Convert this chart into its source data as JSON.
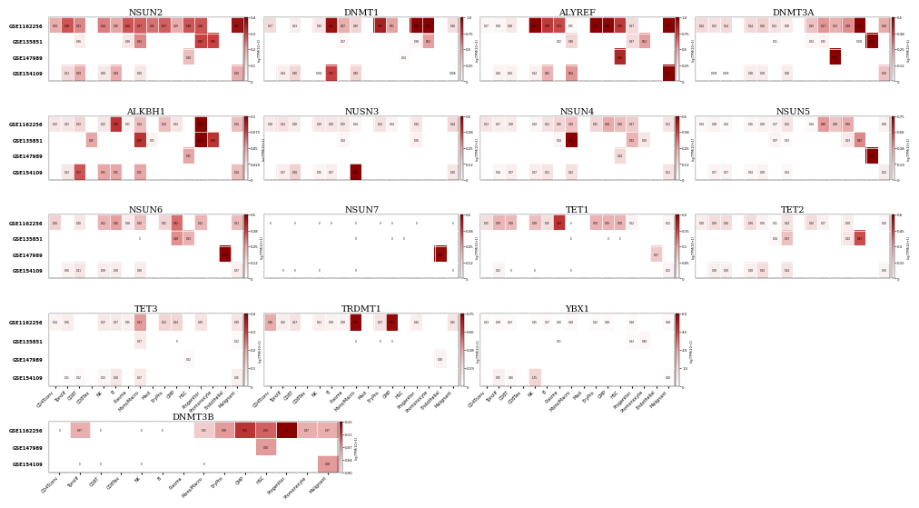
{
  "cell_types_full": [
    "CD4Tconv",
    "Tprolif",
    "CD8T",
    "CD8Tex",
    "NK",
    "B",
    "Plasma",
    "Mono/Macro",
    "Mast",
    "EryPro",
    "GMP",
    "HSC",
    "Progenitor",
    "Promonocyte",
    "Endothelial",
    "Malignant"
  ],
  "cell_types_dnmt3b": [
    "CD4Tconv",
    "Tprolif",
    "CD8T",
    "CD8Tex",
    "NK",
    "B",
    "Plasma",
    "Mono/Macro",
    "EryPro",
    "GMP",
    "HSC",
    "Progenitor",
    "Promonocyte",
    "Malignant"
  ],
  "datasets_4": [
    "GSE1162256",
    "GSE135851",
    "GSE147989",
    "GSE154109"
  ],
  "datasets_dnmt3b": [
    "GSE1162256",
    "GSE147989",
    "GSE154109"
  ],
  "NSUN2": {
    "GSE1162256": [
      0.19,
      0.28,
      0.23,
      null,
      0.24,
      0.2,
      0.28,
      0.27,
      0.25,
      0.27,
      0.19,
      0.28,
      0.28,
      null,
      null,
      0.37
    ],
    "GSE135851": [
      null,
      null,
      0.06,
      null,
      null,
      null,
      0.08,
      0.23,
      null,
      null,
      null,
      null,
      0.3,
      0.3,
      null,
      null
    ],
    "GSE147989": [
      null,
      null,
      null,
      null,
      null,
      null,
      null,
      null,
      null,
      null,
      null,
      0.16,
      null,
      null,
      null,
      null
    ],
    "GSE154109": [
      null,
      0.11,
      0.19,
      null,
      0.08,
      0.19,
      null,
      0.08,
      null,
      null,
      null,
      null,
      null,
      null,
      null,
      0.19
    ],
    "vmax": 0.4
  },
  "DNMT1": {
    "GSE1162256": [
      0.27,
      null,
      0.13,
      null,
      0.2,
      0.93,
      0.47,
      0.3,
      null,
      0.87,
      0.51,
      null,
      1.08,
      1.06,
      null,
      0.26
    ],
    "GSE135851": [
      null,
      null,
      null,
      null,
      null,
      null,
      0.07,
      null,
      null,
      null,
      null,
      null,
      0.08,
      0.52,
      null,
      null
    ],
    "GSE147989": [
      null,
      null,
      null,
      null,
      null,
      null,
      null,
      null,
      null,
      null,
      null,
      0.04,
      null,
      null,
      null,
      null
    ],
    "GSE154109": [
      null,
      0.14,
      0.3,
      null,
      0.002,
      0.754,
      null,
      0.302,
      null,
      null,
      null,
      null,
      null,
      null,
      null,
      0.008
    ],
    "vmax": 1.0
  },
  "ALYREF": {
    "GSE1162256": [
      0.07,
      0.08,
      0.18,
      null,
      1.55,
      0.78,
      0.73,
      0.05,
      null,
      1.07,
      0.98,
      0.78,
      0.27,
      null,
      null,
      1.01
    ],
    "GSE135851": [
      null,
      null,
      null,
      null,
      null,
      null,
      0.02,
      0.3,
      null,
      null,
      null,
      null,
      0.27,
      0.52,
      null,
      null
    ],
    "GSE147989": [
      null,
      null,
      null,
      null,
      null,
      null,
      null,
      null,
      null,
      null,
      null,
      0.84,
      null,
      null,
      null,
      null
    ],
    "GSE154109": [
      null,
      0.1,
      0.12,
      null,
      0.12,
      0.45,
      null,
      0.54,
      null,
      null,
      null,
      null,
      null,
      null,
      null,
      1.01
    ],
    "vmax": 1.0
  },
  "DNMT3A": {
    "GSE1162256": [
      0.14,
      0.12,
      0.14,
      null,
      0.14,
      0.16,
      0.12,
      0.08,
      null,
      0.19,
      0.27,
      0.23,
      0.28,
      0.52,
      null,
      0.24
    ],
    "GSE135851": [
      null,
      null,
      null,
      null,
      null,
      null,
      0.01,
      null,
      null,
      0.04,
      0.05,
      null,
      null,
      0.001,
      0.52,
      null
    ],
    "GSE147989": [
      null,
      null,
      null,
      null,
      null,
      null,
      null,
      null,
      null,
      null,
      null,
      0.52,
      null,
      null,
      null,
      null
    ],
    "GSE154109": [
      null,
      0.005,
      0.003,
      null,
      0.08,
      0.08,
      null,
      0.08,
      null,
      null,
      null,
      null,
      null,
      null,
      null,
      0.19
    ],
    "vmax": 0.5
  },
  "ALKBH1": {
    "GSE1162256": [
      0.02,
      0.02,
      0.03,
      null,
      0.02,
      0.08,
      0.01,
      0.04,
      null,
      0.04,
      0.02,
      null,
      0.1,
      null,
      null,
      0.04
    ],
    "GSE135851": [
      null,
      null,
      null,
      0.05,
      null,
      null,
      null,
      0.08,
      0.01,
      null,
      null,
      null,
      0.1,
      0.08,
      null,
      null
    ],
    "GSE147989": [
      null,
      null,
      null,
      null,
      null,
      null,
      null,
      null,
      null,
      null,
      null,
      0.05,
      null,
      null,
      null,
      null
    ],
    "GSE154109": [
      null,
      0.02,
      0.07,
      null,
      0.05,
      0.05,
      null,
      0.05,
      null,
      null,
      null,
      null,
      null,
      null,
      null,
      0.04
    ],
    "vmax": 0.1
  },
  "NUSN3": {
    "GSE1162256": [
      0.08,
      0.12,
      0.08,
      null,
      0.1,
      0.1,
      0.09,
      0.04,
      null,
      0.12,
      0.04,
      null,
      0.1,
      null,
      null,
      0.14
    ],
    "GSE135851": [
      null,
      null,
      null,
      null,
      null,
      null,
      0.04,
      null,
      null,
      null,
      null,
      null,
      0.06,
      null,
      null,
      null
    ],
    "GSE147989": [
      null,
      null,
      null,
      null,
      null,
      null,
      null,
      null,
      null,
      null,
      null,
      null,
      null,
      null,
      null,
      null
    ],
    "GSE154109": [
      null,
      0.07,
      0.16,
      null,
      0.05,
      0.07,
      null,
      0.5,
      null,
      null,
      null,
      null,
      null,
      null,
      null,
      0.1
    ],
    "vmax": 0.5
  },
  "NSUN4": {
    "GSE1162256": [
      0.11,
      0.07,
      0.08,
      null,
      0.04,
      0.12,
      0.15,
      0.19,
      null,
      0.15,
      0.24,
      0.2,
      0.17,
      null,
      null,
      0.11
    ],
    "GSE135851": [
      null,
      null,
      null,
      null,
      null,
      null,
      0.04,
      0.5,
      null,
      null,
      null,
      null,
      0.22,
      0.1,
      null,
      null
    ],
    "GSE147989": [
      null,
      null,
      null,
      null,
      null,
      null,
      null,
      null,
      null,
      null,
      null,
      0.14,
      null,
      null,
      null,
      null
    ],
    "GSE154109": [
      null,
      0.04,
      0.07,
      null,
      0.07,
      0.11,
      null,
      0.12,
      null,
      null,
      null,
      null,
      null,
      null,
      null,
      0.11
    ],
    "vmax": 0.5
  },
  "NSUN5": {
    "GSE1162256": [
      0.04,
      0.08,
      0.04,
      null,
      0.06,
      0.08,
      0.07,
      0.16,
      null,
      0.04,
      0.4,
      0.28,
      0.36,
      null,
      null,
      0.08
    ],
    "GSE135851": [
      null,
      null,
      null,
      null,
      null,
      null,
      0.07,
      0.03,
      null,
      null,
      null,
      null,
      0.13,
      0.43,
      null,
      null
    ],
    "GSE147989": [
      null,
      null,
      null,
      null,
      null,
      null,
      null,
      null,
      null,
      null,
      null,
      null,
      null,
      null,
      0.98,
      null
    ],
    "GSE154109": [
      null,
      0.07,
      0.07,
      null,
      0.04,
      0.08,
      null,
      0.04,
      null,
      null,
      null,
      null,
      null,
      null,
      null,
      0.12
    ],
    "vmax": 0.75
  },
  "NSUN6": {
    "GSE1162256": [
      0.16,
      null,
      0.1,
      null,
      0.22,
      0.26,
      0.08,
      0.2,
      null,
      0.15,
      0.32,
      null,
      0.22,
      null,
      null,
      0.21
    ],
    "GSE135851": [
      null,
      null,
      null,
      null,
      null,
      null,
      null,
      0.0,
      null,
      null,
      0.28,
      0.23,
      null,
      null,
      null,
      null
    ],
    "GSE147989": [
      null,
      null,
      null,
      null,
      null,
      null,
      null,
      null,
      null,
      null,
      null,
      null,
      null,
      null,
      0.75,
      null
    ],
    "GSE154109": [
      null,
      0.06,
      0.11,
      null,
      0.08,
      0.08,
      null,
      0.08,
      null,
      null,
      null,
      null,
      null,
      null,
      null,
      0.07
    ],
    "vmax": 0.5
  },
  "NSUN7": {
    "GSE1162256": [
      0.0,
      null,
      0.0,
      null,
      0.0,
      0.0,
      null,
      0.0,
      null,
      0.0,
      0.0,
      null,
      0.0,
      null,
      null,
      0.0
    ],
    "GSE135851": [
      null,
      null,
      null,
      null,
      null,
      null,
      null,
      0.0,
      null,
      null,
      0.0,
      0.0,
      null,
      null,
      null,
      null
    ],
    "GSE147989": [
      null,
      null,
      null,
      null,
      null,
      null,
      null,
      null,
      null,
      null,
      null,
      null,
      null,
      null,
      0.48,
      null
    ],
    "GSE154109": [
      null,
      0.0,
      0.0,
      null,
      0.0,
      null,
      null,
      0.0,
      null,
      null,
      null,
      null,
      null,
      null,
      null,
      0.0
    ],
    "vmax": 0.5
  },
  "TET1": {
    "GSE1162256": [
      0.05,
      0.088,
      0.084,
      null,
      0.08,
      0.05,
      0.16,
      0.0,
      null,
      0.09,
      0.09,
      0.09,
      0.017,
      null,
      null,
      0.017
    ],
    "GSE135851": [
      null,
      null,
      null,
      null,
      null,
      null,
      null,
      0.0,
      null,
      null,
      0.0,
      0.0,
      null,
      null,
      null,
      null
    ],
    "GSE147989": [
      null,
      null,
      null,
      null,
      null,
      null,
      null,
      null,
      null,
      null,
      null,
      null,
      null,
      null,
      0.07,
      null
    ],
    "GSE154109": [
      null,
      0.021,
      0.0,
      null,
      0.0,
      null,
      null,
      0.0,
      null,
      null,
      null,
      null,
      null,
      null,
      null,
      0.021
    ],
    "vmax": 0.2
  },
  "TET2": {
    "GSE1162256": [
      0.084,
      0.16,
      0.16,
      null,
      0.16,
      0.061,
      0.01,
      0.14,
      null,
      0.16,
      0.066,
      null,
      0.09,
      null,
      null,
      0.044
    ],
    "GSE135851": [
      null,
      null,
      null,
      null,
      null,
      null,
      0.04,
      0.23,
      null,
      null,
      null,
      null,
      0.12,
      0.43,
      null,
      null
    ],
    "GSE147989": [
      null,
      null,
      null,
      null,
      null,
      null,
      null,
      null,
      null,
      null,
      null,
      null,
      null,
      null,
      null,
      null
    ],
    "GSE154109": [
      null,
      0.08,
      0.08,
      null,
      0.08,
      0.16,
      null,
      0.14,
      null,
      null,
      null,
      null,
      null,
      null,
      null,
      0.06
    ],
    "vmax": 0.6
  },
  "TET3": {
    "GSE1162256": [
      0.04,
      0.06,
      null,
      null,
      0.07,
      0.07,
      0.05,
      0.21,
      null,
      0.12,
      0.12,
      null,
      0.09,
      null,
      null,
      0.09
    ],
    "GSE135851": [
      null,
      null,
      null,
      null,
      null,
      null,
      null,
      0.07,
      null,
      null,
      0.0,
      null,
      null,
      null,
      null,
      0.02
    ],
    "GSE147989": [
      null,
      null,
      null,
      null,
      null,
      null,
      null,
      null,
      null,
      null,
      null,
      0.02,
      null,
      null,
      null,
      null
    ],
    "GSE154109": [
      null,
      0.01,
      0.02,
      null,
      0.03,
      0.08,
      null,
      0.07,
      null,
      null,
      null,
      null,
      null,
      null,
      null,
      0.05
    ],
    "vmax": 0.4
  },
  "TRDMT1": {
    "GSE1162256": [
      0.36,
      0.1,
      0.17,
      null,
      0.11,
      0.08,
      0.08,
      0.73,
      null,
      0.17,
      0.72,
      null,
      0.1,
      null,
      null,
      0.15
    ],
    "GSE135851": [
      null,
      null,
      null,
      null,
      null,
      null,
      null,
      0.0,
      null,
      0.0,
      0.0,
      null,
      null,
      null,
      null,
      null
    ],
    "GSE147989": [
      null,
      null,
      null,
      null,
      null,
      null,
      null,
      null,
      null,
      null,
      null,
      null,
      null,
      null,
      0.08,
      null
    ],
    "GSE154109": [
      null,
      null,
      null,
      null,
      null,
      null,
      null,
      null,
      null,
      null,
      null,
      null,
      null,
      null,
      null,
      null
    ],
    "vmax": 0.75
  },
  "YBX1": {
    "GSE1162256": [
      0.23,
      0.28,
      0.23,
      null,
      0.25,
      0.27,
      0.1,
      0.28,
      null,
      0.22,
      0.28,
      null,
      0.28,
      null,
      null,
      0.28
    ],
    "GSE135851": [
      null,
      null,
      null,
      null,
      null,
      null,
      0.01,
      null,
      null,
      null,
      null,
      null,
      0.22,
      0.4,
      null,
      null
    ],
    "GSE147989": [
      null,
      null,
      null,
      null,
      null,
      null,
      null,
      null,
      null,
      null,
      null,
      null,
      null,
      null,
      null,
      null
    ],
    "GSE154109": [
      null,
      0.75,
      0.3,
      null,
      1.75,
      null,
      null,
      null,
      null,
      null,
      null,
      null,
      null,
      null,
      null,
      0.19
    ],
    "vmax": 6.0
  },
  "DNMT3B": {
    "GSE1162256": [
      0.0,
      0.07,
      0.0,
      null,
      0.0,
      0.0,
      null,
      0.05,
      0.08,
      0.12,
      0.1,
      0.31,
      0.07,
      0.07
    ],
    "GSE147989": [
      null,
      null,
      null,
      null,
      null,
      null,
      null,
      null,
      null,
      null,
      0.08,
      null,
      null,
      null
    ],
    "GSE154109": [
      null,
      0.0,
      0.0,
      null,
      0.0,
      null,
      null,
      0.0,
      null,
      null,
      null,
      null,
      null,
      0.08
    ],
    "vmax": 0.15
  },
  "layout": [
    [
      "NSUN2",
      "DNMT1",
      "ALYREF",
      "DNMT3A"
    ],
    [
      "ALKBH1",
      "NUSN3",
      "NSUN4",
      "NSUN5"
    ],
    [
      "NSUN6",
      "NSUN7",
      "TET1",
      "TET2"
    ],
    [
      "TET3",
      "TRDMT1",
      "YBX1",
      null
    ]
  ],
  "cbar_label": "log(TPM/10+1)"
}
